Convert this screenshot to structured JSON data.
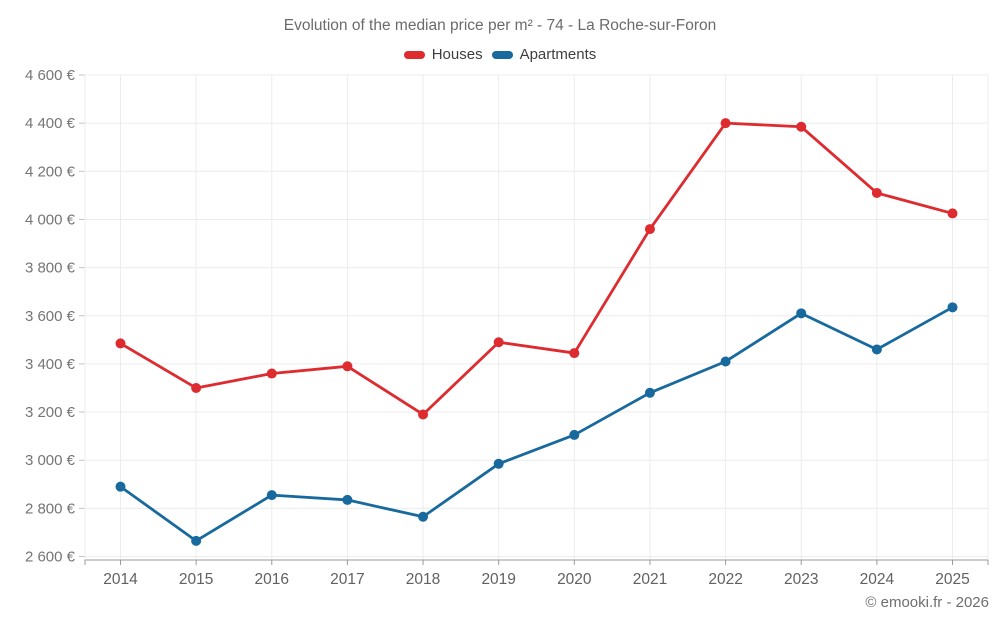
{
  "page": {
    "footer": "© emooki.fr - 2026"
  },
  "style": {
    "houses_color": "#dd2b2f",
    "apartments_color": "#17699e",
    "grid_color": "#ececec",
    "axis_color": "#9b9b9b",
    "y_tick_mark_color": "#c4c4c4",
    "y_label_color": "#757575",
    "x_label_color": "#616161",
    "title_color": "#6b6b6b",
    "background": "#ffffff"
  },
  "chart_data": {
    "type": "line",
    "title": "Evolution of the median price per m² - 74 - La Roche-sur-Foron",
    "xlabel": "",
    "ylabel": "",
    "x": [
      "2014",
      "2015",
      "2016",
      "2017",
      "2018",
      "2019",
      "2020",
      "2021",
      "2022",
      "2023",
      "2024",
      "2025"
    ],
    "series": [
      {
        "name": "Houses",
        "color": "#dd2b2f",
        "values": [
          3485,
          3300,
          3360,
          3390,
          3190,
          3490,
          3445,
          3960,
          4400,
          4385,
          4110,
          4025
        ]
      },
      {
        "name": "Apartments",
        "color": "#17699e",
        "values": [
          2890,
          2665,
          2855,
          2835,
          2765,
          2985,
          3105,
          3280,
          3410,
          3610,
          3460,
          3635
        ]
      }
    ],
    "ylim": [
      2600,
      4600
    ],
    "y_ticks": [
      2600,
      2800,
      3000,
      3200,
      3400,
      3600,
      3800,
      4000,
      4200,
      4400,
      4600
    ],
    "y_tick_labels": [
      "2 600 €",
      "2 800 €",
      "3 000 €",
      "3 200 €",
      "3 400 €",
      "3 600 €",
      "3 800 €",
      "4 000 €",
      "4 200 €",
      "4 400 €",
      "4 600 €"
    ],
    "grid": true,
    "legend_position": "top",
    "currency_unit": "€"
  }
}
